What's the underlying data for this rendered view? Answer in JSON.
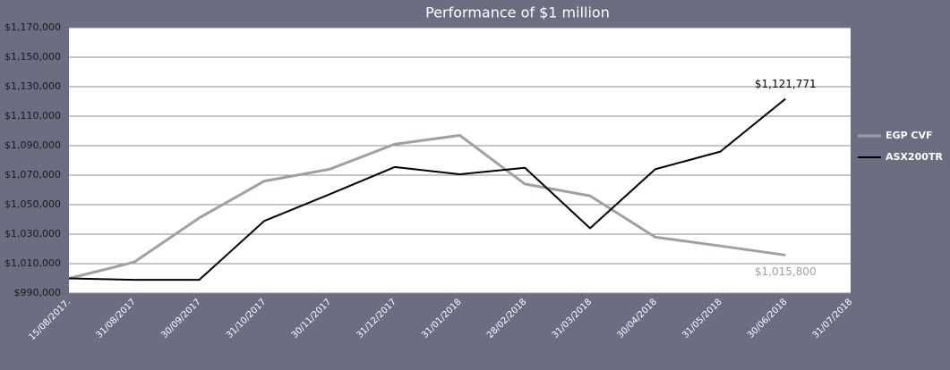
{
  "chart_data": {
    "type": "line",
    "title": "Performance of $1 million",
    "categories": [
      "15/08/2017.",
      "31/08/2017",
      "30/09/2017",
      "31/10/2017",
      "30/11/2017",
      "31/12/2017",
      "31/01/2018",
      "28/02/2018",
      "31/03/2018",
      "30/04/2018",
      "31/05/2018",
      "30/06/2018",
      "31/07/2018"
    ],
    "series": [
      {
        "name": "EGP CVF",
        "color": "#9ca1a8",
        "values": [
          1000000,
          1011000,
          1041000,
          1066000,
          1074000,
          1091000,
          1097000,
          1064000,
          1056000,
          1028000,
          1022000,
          1015800,
          null
        ],
        "value_labels": [
          null,
          null,
          null,
          null,
          null,
          null,
          null,
          null,
          null,
          null,
          null,
          "$1,015,800",
          null
        ]
      },
      {
        "name": "ASX200TR",
        "color": "#000000",
        "values": [
          1000000,
          999000,
          999000,
          1039000,
          1057000,
          1075500,
          1070600,
          1075000,
          1034000,
          1074000,
          1086000,
          1121771,
          null
        ],
        "value_labels": [
          null,
          null,
          null,
          null,
          null,
          null,
          null,
          null,
          null,
          null,
          null,
          "$1,121,771",
          null
        ]
      }
    ],
    "ylim": [
      990000,
      1170000
    ],
    "yticks": [
      {
        "value": 990000,
        "label": "$990,000"
      },
      {
        "value": 1010000,
        "label": "$1,010,000"
      },
      {
        "value": 1030000,
        "label": "$1,030,000"
      },
      {
        "value": 1050000,
        "label": "$1,050,000"
      },
      {
        "value": 1070000,
        "label": "$1,070,000"
      },
      {
        "value": 1090000,
        "label": "$1,090,000"
      },
      {
        "value": 1110000,
        "label": "$1,110,000"
      },
      {
        "value": 1130000,
        "label": "$1,130,000"
      },
      {
        "value": 1150000,
        "label": "$1,150,000"
      },
      {
        "value": 1170000,
        "label": "$1,170,000"
      }
    ],
    "grid": true,
    "legend": "right"
  }
}
